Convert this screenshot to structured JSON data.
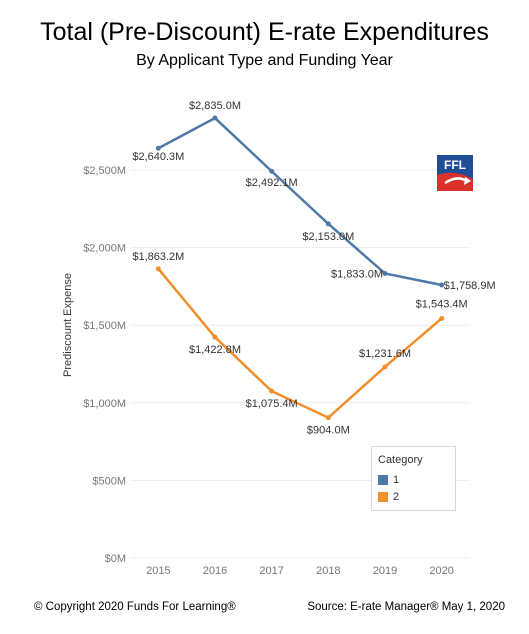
{
  "title": "Total (Pre-Discount) E-rate Expenditures",
  "subtitle": "By Applicant Type and Funding Year",
  "footer_left": "© Copyright 2020 Funds For Learning®",
  "footer_right": "Source: E-rate Manager® May 1, 2020",
  "logo_text": "FFL",
  "colors": {
    "series1": "#4e79a7",
    "series2": "#f28e2b",
    "grid": "#ececec",
    "axis_text": "#777777"
  },
  "legend": {
    "title": "Category",
    "items": [
      {
        "label": "1"
      },
      {
        "label": "2"
      }
    ]
  },
  "chart_data": {
    "type": "line",
    "title": "Total (Pre-Discount) E-rate Expenditures",
    "subtitle": "By Applicant Type and Funding Year",
    "xlabel": "",
    "ylabel": "Prediscount Expense",
    "x": [
      "2015",
      "2016",
      "2017",
      "2018",
      "2019",
      "2020"
    ],
    "ylim": [
      0,
      3000
    ],
    "yticks": [
      0,
      500,
      1000,
      1500,
      2000,
      2500
    ],
    "ytick_labels": [
      "$0M",
      "$500M",
      "$1,000M",
      "$1,500M",
      "$2,000M",
      "$2,500M"
    ],
    "grid": true,
    "legend_position": "bottom-right",
    "series": [
      {
        "name": "1",
        "values": [
          2640.3,
          2835.0,
          2492.1,
          2153.0,
          1833.0,
          1758.9
        ],
        "labels": [
          "$2,640.3M",
          "$2,835.0M",
          "$2,492.1M",
          "$2,153.0M",
          "$1,833.0M",
          "$1,758.9M"
        ]
      },
      {
        "name": "2",
        "values": [
          1863.2,
          1422.8,
          1075.4,
          904.0,
          1231.6,
          1543.4
        ],
        "labels": [
          "$1,863.2M",
          "$1,422.8M",
          "$1,075.4M",
          "$904.0M",
          "$1,231.6M",
          "$1,543.4M"
        ]
      }
    ]
  }
}
